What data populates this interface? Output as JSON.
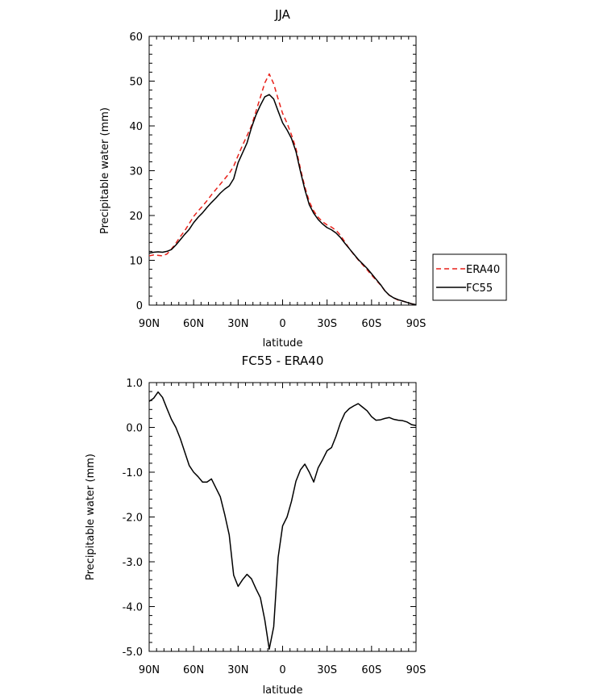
{
  "chart_data": [
    {
      "type": "line",
      "title": "JJA",
      "xlabel": "latitude",
      "ylabel": "Precipitable water (mm)",
      "xlim": [
        -90,
        90
      ],
      "ylim": [
        0,
        60
      ],
      "x_ticks": [
        -90,
        -60,
        -30,
        0,
        30,
        60,
        90
      ],
      "x_tick_labels": [
        "90N",
        "60N",
        "30N",
        "0",
        "30S",
        "60S",
        "90S"
      ],
      "y_ticks": [
        0,
        10,
        20,
        30,
        40,
        50,
        60
      ],
      "y_tick_labels": [
        "0",
        "10",
        "20",
        "30",
        "40",
        "50",
        "60"
      ],
      "grid": false,
      "legend": {
        "placement": "right-outside",
        "entries": [
          {
            "label": "ERA40",
            "color": "#e8211a",
            "dash": "dashed"
          },
          {
            "label": "FC55",
            "color": "#000000",
            "dash": "solid"
          }
        ]
      },
      "series": [
        {
          "name": "ERA40",
          "color": "#e8211a",
          "dash": "dashed",
          "x": [
            -90,
            -87,
            -84,
            -81,
            -78,
            -75,
            -72,
            -69,
            -66,
            -63,
            -60,
            -57,
            -54,
            -51,
            -48,
            -45,
            -42,
            -39,
            -36,
            -33,
            -30,
            -27,
            -24,
            -21,
            -18,
            -15,
            -12,
            -9,
            -6,
            -3,
            0,
            3,
            6,
            9,
            12,
            15,
            18,
            21,
            24,
            27,
            30,
            33,
            36,
            39,
            42,
            45,
            48,
            51,
            54,
            57,
            60,
            63,
            66,
            69,
            72,
            75,
            78,
            81,
            84,
            87,
            90
          ],
          "y": [
            11.0,
            11.2,
            11.1,
            11.0,
            11.4,
            12.5,
            13.8,
            15.3,
            16.6,
            18.2,
            19.8,
            21.0,
            22.1,
            23.3,
            24.6,
            25.8,
            27.0,
            28.2,
            29.4,
            31.0,
            33.4,
            35.7,
            37.8,
            40.0,
            43.2,
            46.4,
            49.6,
            51.6,
            49.4,
            46.0,
            42.8,
            40.6,
            38.0,
            35.0,
            30.5,
            26.4,
            23.1,
            21.0,
            19.6,
            18.6,
            17.9,
            17.4,
            16.7,
            15.6,
            14.1,
            12.6,
            11.3,
            10.1,
            9.0,
            7.9,
            6.7,
            5.6,
            4.5,
            3.2,
            2.2,
            1.6,
            1.1,
            0.9,
            0.6,
            0.3,
            0.1
          ]
        },
        {
          "name": "FC55",
          "color": "#000000",
          "dash": "solid",
          "x": [
            -90,
            -87,
            -84,
            -81,
            -78,
            -75,
            -72,
            -69,
            -66,
            -63,
            -60,
            -57,
            -54,
            -51,
            -48,
            -45,
            -42,
            -39,
            -36,
            -33,
            -30,
            -27,
            -24,
            -21,
            -18,
            -15,
            -12,
            -9,
            -6,
            -3,
            0,
            3,
            6,
            9,
            12,
            15,
            18,
            21,
            24,
            27,
            30,
            33,
            36,
            39,
            42,
            45,
            48,
            51,
            54,
            57,
            60,
            63,
            66,
            69,
            72,
            75,
            78,
            81,
            84,
            87,
            90
          ],
          "y": [
            11.6,
            11.8,
            11.9,
            11.8,
            12.0,
            12.4,
            13.4,
            14.6,
            15.8,
            16.9,
            18.4,
            19.6,
            20.6,
            21.8,
            22.9,
            23.9,
            25.0,
            25.9,
            26.6,
            28.2,
            31.8,
            34.0,
            36.2,
            39.6,
            42.4,
            44.6,
            46.5,
            47.0,
            46.0,
            43.3,
            40.7,
            39.1,
            37.2,
            34.3,
            29.9,
            25.8,
            22.4,
            20.5,
            19.1,
            18.1,
            17.3,
            16.8,
            16.1,
            15.1,
            13.8,
            12.6,
            11.4,
            10.2,
            9.2,
            8.2,
            7.0,
            5.8,
            4.6,
            3.2,
            2.2,
            1.6,
            1.2,
            0.9,
            0.6,
            0.3,
            0.1
          ]
        }
      ]
    },
    {
      "type": "line",
      "title": "FC55 - ERA40",
      "xlabel": "latitude",
      "ylabel": "Precipitable water (mm)",
      "xlim": [
        -90,
        90
      ],
      "ylim": [
        -5.0,
        1.0
      ],
      "x_ticks": [
        -90,
        -60,
        -30,
        0,
        30,
        60,
        90
      ],
      "x_tick_labels": [
        "90N",
        "60N",
        "30N",
        "0",
        "30S",
        "60S",
        "90S"
      ],
      "y_ticks": [
        1.0,
        0.0,
        -1.0,
        -2.0,
        -3.0,
        -4.0,
        -5.0
      ],
      "y_tick_labels": [
        "1.0",
        "0.0",
        "-1.0",
        "-2.0",
        "-3.0",
        "-4.0",
        "-5.0"
      ],
      "grid": false,
      "series": [
        {
          "color": "#000000",
          "dash": "solid",
          "x": [
            -90,
            -87,
            -84,
            -81,
            -78,
            -75,
            -72,
            -69,
            -66,
            -63,
            -60,
            -57,
            -54,
            -51,
            -48,
            -45,
            -42,
            -39,
            -36,
            -33,
            -30,
            -27,
            -24,
            -21,
            -18,
            -15,
            -12,
            -9,
            -6,
            -3,
            0,
            3,
            6,
            9,
            12,
            15,
            18,
            21,
            24,
            27,
            30,
            33,
            36,
            39,
            42,
            45,
            48,
            51,
            54,
            57,
            60,
            63,
            66,
            69,
            72,
            75,
            78,
            81,
            84,
            87,
            90
          ],
          "y": [
            0.58,
            0.65,
            0.79,
            0.67,
            0.42,
            0.18,
            0.0,
            -0.25,
            -0.55,
            -0.85,
            -1.0,
            -1.1,
            -1.22,
            -1.22,
            -1.15,
            -1.35,
            -1.55,
            -1.95,
            -2.4,
            -3.3,
            -3.55,
            -3.4,
            -3.28,
            -3.38,
            -3.6,
            -3.8,
            -4.3,
            -4.95,
            -4.45,
            -2.9,
            -2.2,
            -2.0,
            -1.65,
            -1.2,
            -0.95,
            -0.82,
            -1.0,
            -1.22,
            -0.9,
            -0.72,
            -0.52,
            -0.45,
            -0.2,
            0.1,
            0.32,
            0.42,
            0.48,
            0.53,
            0.45,
            0.37,
            0.24,
            0.16,
            0.17,
            0.2,
            0.22,
            0.18,
            0.16,
            0.15,
            0.12,
            0.06,
            0.04
          ]
        }
      ]
    }
  ]
}
